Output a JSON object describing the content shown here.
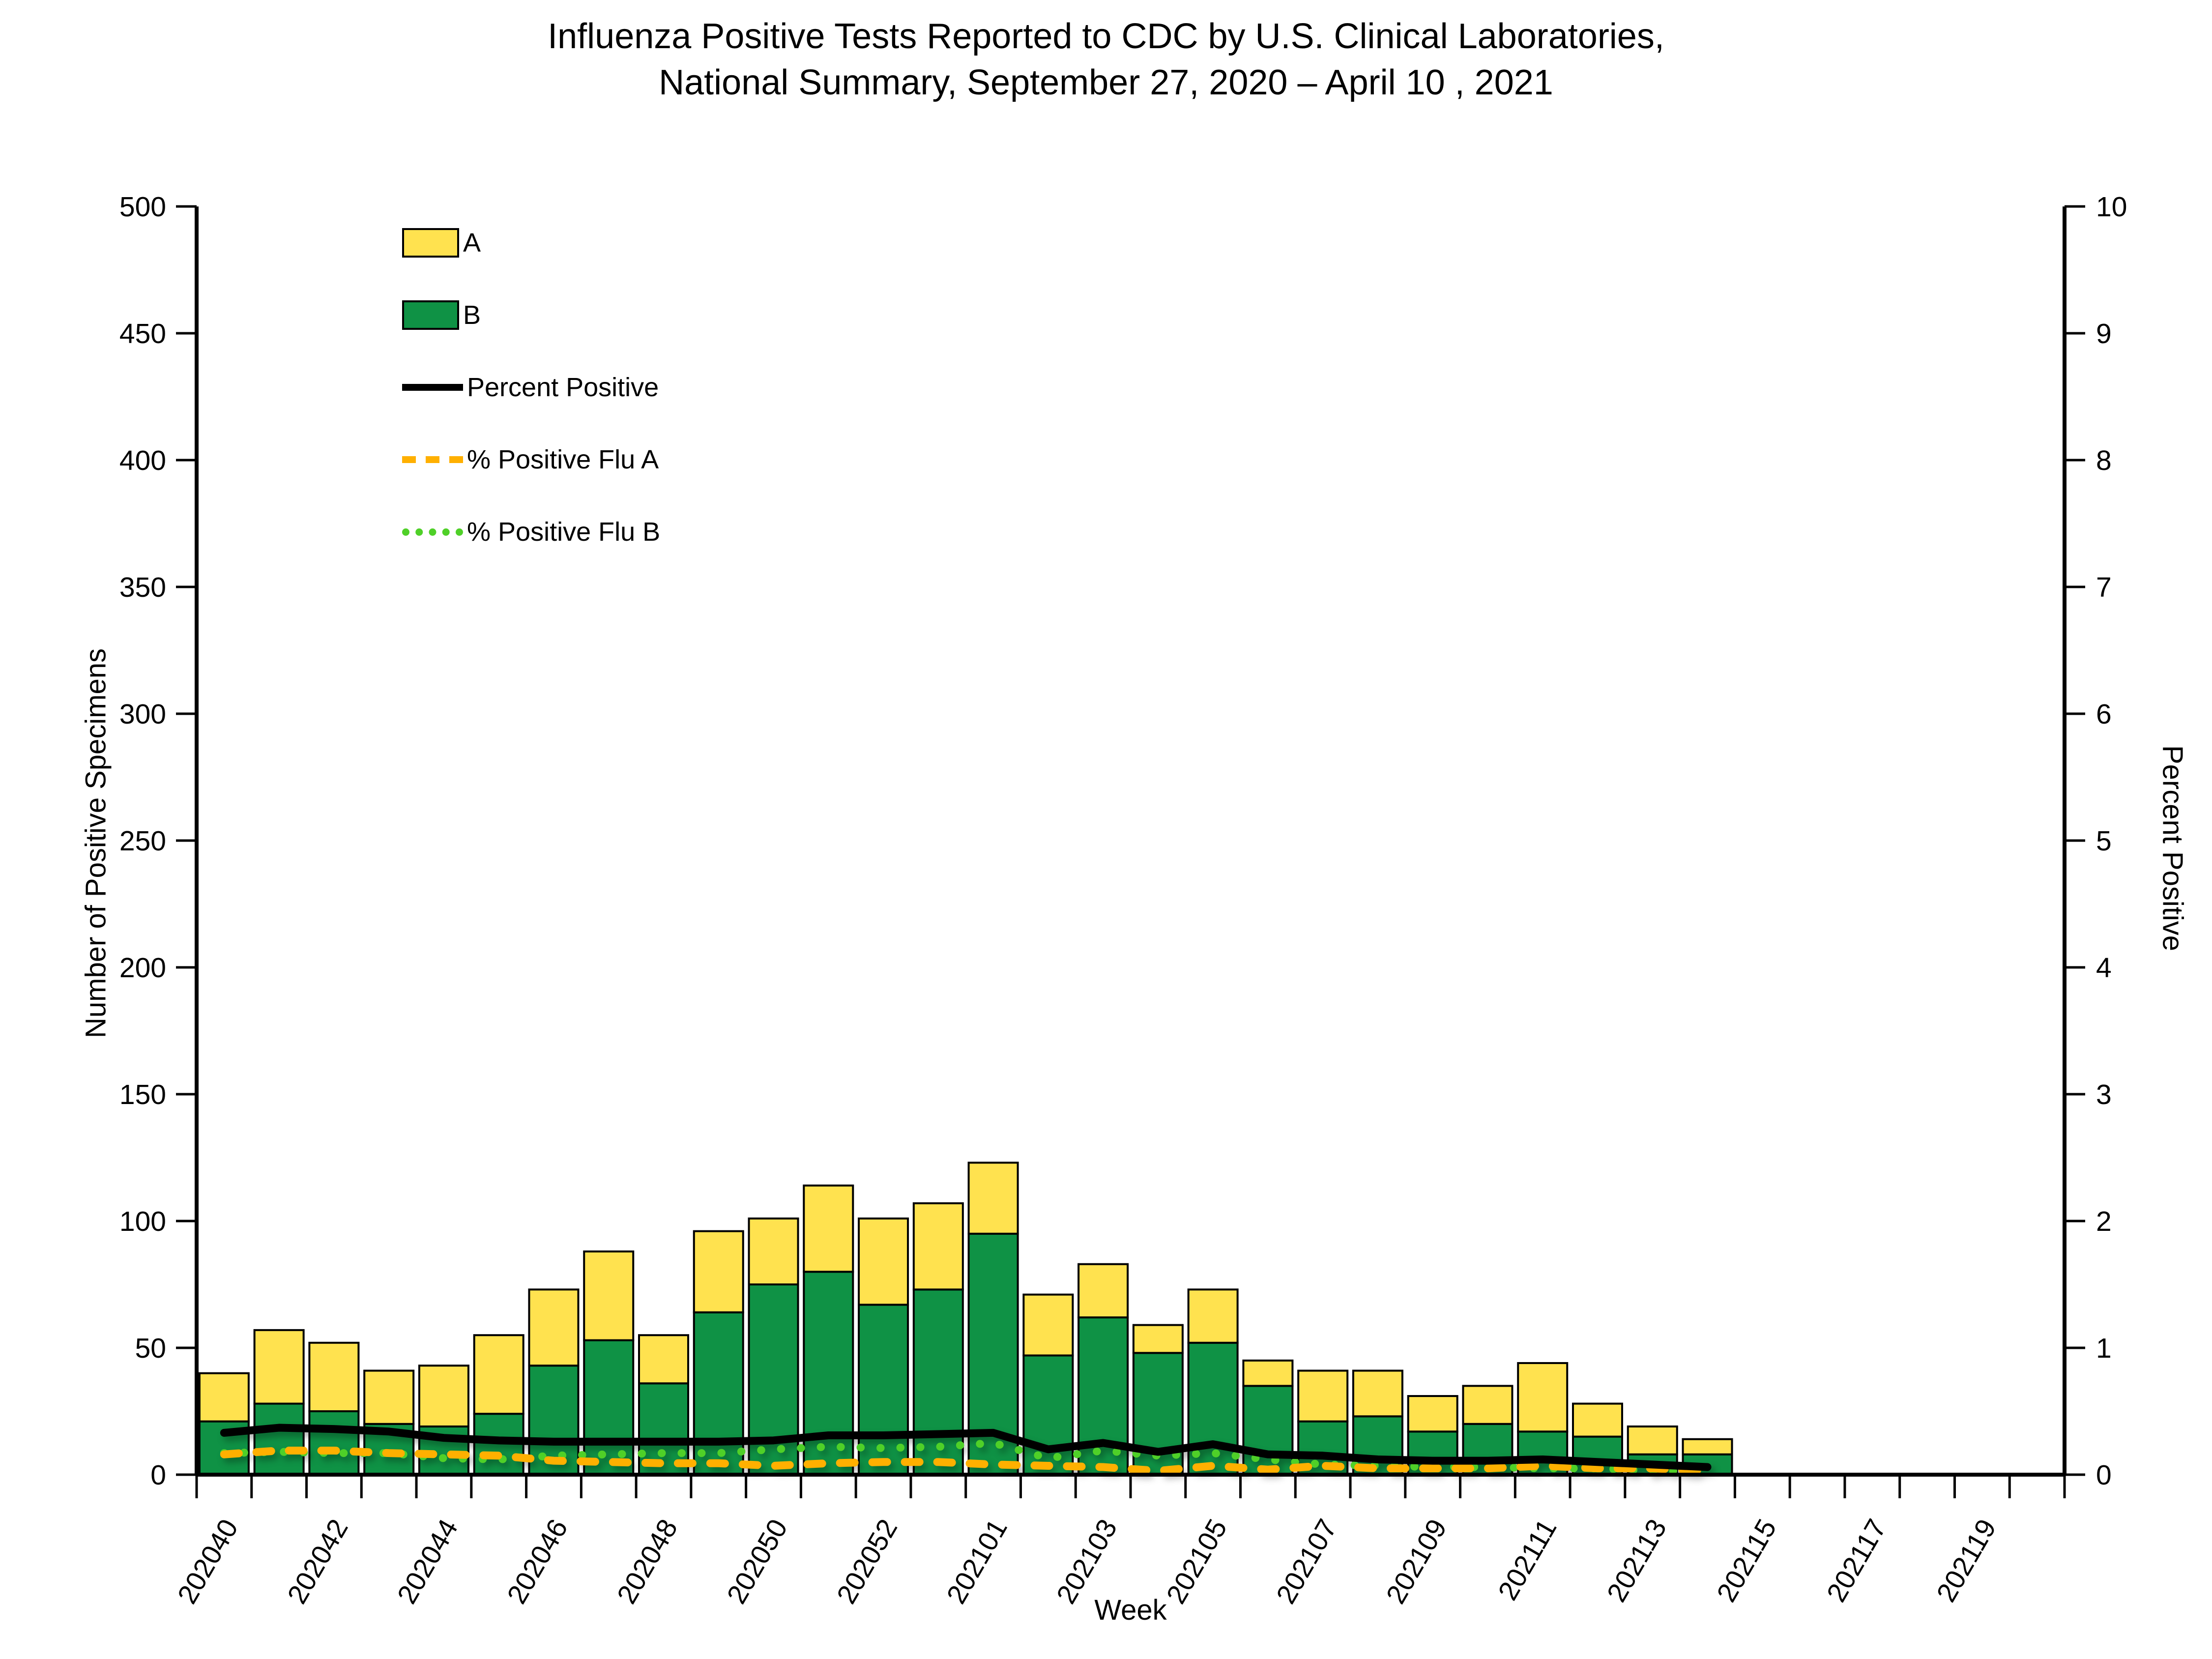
{
  "title_line1": "Influenza Positive Tests Reported to CDC by U.S. Clinical Laboratories,",
  "title_line2": "National Summary, September 27, 2020 – April 10 , 2021",
  "legend": {
    "items": [
      {
        "label": "A",
        "swatch": "rect",
        "color": "#FFE24F"
      },
      {
        "label": "B",
        "swatch": "rect",
        "color": "#0F9245"
      },
      {
        "label": "Percent Positive",
        "swatch": "line",
        "color": "#000000"
      },
      {
        "label": "% Positive Flu A",
        "swatch": "dash",
        "color": "#FFB000"
      },
      {
        "label": "% Positive Flu B",
        "swatch": "dot",
        "color": "#4FD028"
      }
    ]
  },
  "chart_data": {
    "type": "bar",
    "subtype": "stacked-bars-with-lines",
    "title": "Influenza Positive Tests Reported to CDC by U.S. Clinical Laboratories, National Summary, September 27, 2020 – April 10 , 2021",
    "xlabel": "Week",
    "y_left": {
      "title": "Number of Positive Specimens",
      "min": 0,
      "max": 500,
      "step": 50
    },
    "y_right": {
      "title": "Percent Positive",
      "min": 0,
      "max": 10,
      "step": 1
    },
    "x_labeled_every": 2,
    "grid": false,
    "legend_position": "inside-top-left",
    "weeks": [
      "202040",
      "202041",
      "202042",
      "202043",
      "202044",
      "202045",
      "202046",
      "202047",
      "202048",
      "202049",
      "202050",
      "202051",
      "202052",
      "202053",
      "202101",
      "202102",
      "202103",
      "202104",
      "202105",
      "202106",
      "202107",
      "202108",
      "202109",
      "202110",
      "202111",
      "202112",
      "202113",
      "202114",
      "202115",
      "202116",
      "202117",
      "202118",
      "202119",
      "202120"
    ],
    "series": [
      {
        "name": "A",
        "type": "bar-top",
        "color": "#FFE24F",
        "values": [
          19,
          29,
          27,
          21,
          24,
          31,
          30,
          35,
          19,
          32,
          26,
          34,
          34,
          34,
          28,
          24,
          21,
          11,
          21,
          10,
          20,
          18,
          14,
          15,
          27,
          13,
          11,
          6
        ]
      },
      {
        "name": "B",
        "type": "bar-bottom",
        "color": "#0F9245",
        "values": [
          21,
          28,
          25,
          20,
          19,
          24,
          43,
          53,
          36,
          64,
          75,
          80,
          67,
          73,
          95,
          47,
          62,
          48,
          52,
          35,
          21,
          23,
          17,
          20,
          17,
          15,
          8,
          8
        ]
      },
      {
        "name": "Percent Positive",
        "type": "line",
        "axis": "right",
        "color": "#000000",
        "values": [
          0.33,
          0.37,
          0.36,
          0.34,
          0.29,
          0.27,
          0.26,
          0.26,
          0.26,
          0.26,
          0.27,
          0.31,
          0.31,
          0.32,
          0.33,
          0.2,
          0.25,
          0.18,
          0.24,
          0.16,
          0.15,
          0.12,
          0.11,
          0.11,
          0.12,
          0.1,
          0.08,
          0.06
        ]
      },
      {
        "name": "% Positive Flu A",
        "type": "line-dashed",
        "axis": "right",
        "color": "#FFB000",
        "values": [
          0.16,
          0.19,
          0.19,
          0.17,
          0.16,
          0.15,
          0.11,
          0.1,
          0.09,
          0.09,
          0.07,
          0.09,
          0.1,
          0.1,
          0.08,
          0.07,
          0.06,
          0.03,
          0.07,
          0.04,
          0.07,
          0.05,
          0.05,
          0.05,
          0.07,
          0.05,
          0.05,
          0.03
        ]
      },
      {
        "name": "% Positive Flu B",
        "type": "line-dotted",
        "axis": "right",
        "color": "#4FD028",
        "values": [
          0.17,
          0.18,
          0.17,
          0.17,
          0.13,
          0.12,
          0.15,
          0.16,
          0.17,
          0.17,
          0.2,
          0.22,
          0.21,
          0.22,
          0.25,
          0.13,
          0.19,
          0.15,
          0.17,
          0.12,
          0.08,
          0.07,
          0.06,
          0.06,
          0.05,
          0.05,
          0.03,
          0.03
        ]
      }
    ]
  }
}
